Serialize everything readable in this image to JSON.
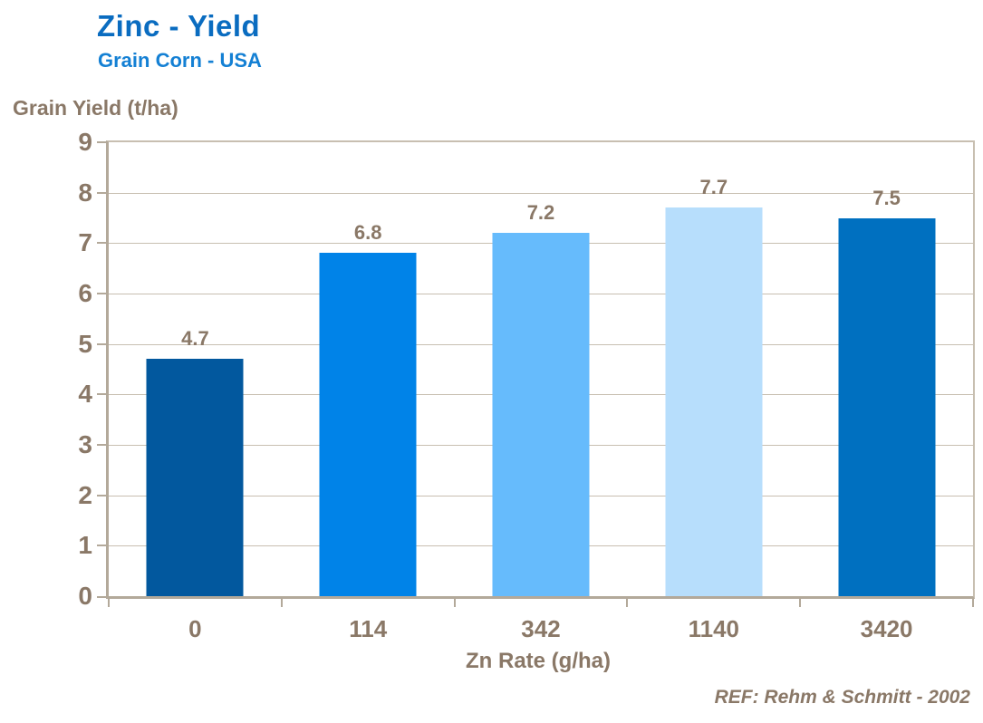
{
  "chart_data": {
    "type": "bar",
    "title": "Zinc - Yield",
    "subtitle": "Grain Corn - USA",
    "ylabel": "Grain Yield (t/ha)",
    "xlabel": "Zn Rate (g/ha)",
    "categories": [
      "0",
      "114",
      "342",
      "1140",
      "3420"
    ],
    "values": [
      4.7,
      6.8,
      7.2,
      7.7,
      7.5
    ],
    "value_labels": [
      "4.7",
      "6.8",
      "7.2",
      "7.7",
      "7.5"
    ],
    "bar_colors": [
      "#02589E",
      "#0083E8",
      "#66BBFC",
      "#B7DEFC",
      "#0070C0"
    ],
    "ylim": [
      0,
      9
    ],
    "yticks": [
      0,
      1,
      2,
      3,
      4,
      5,
      6,
      7,
      8,
      9
    ],
    "grid": "horizontal",
    "legend": "none",
    "reference": "REF: Rehm & Schmitt - 2002",
    "colors": {
      "title": "#0A6CC0",
      "subtitle": "#1480D4",
      "axis_text": "#8A7867",
      "axis_line": "#B3A99A",
      "gridline": "#C8BFB1",
      "background": "#FFFFFF"
    }
  }
}
